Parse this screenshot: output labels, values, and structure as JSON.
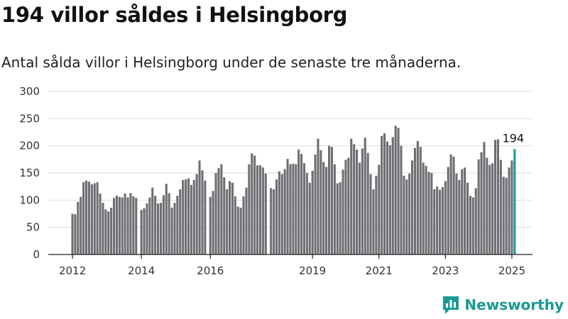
{
  "title": "194 villor såldes i Helsingborg",
  "subtitle": "Antal sålda villor i Helsingborg under de senaste tre månaderna.",
  "brand": {
    "name": "Newsworthy",
    "logo_icon": "newsworthy-logo-icon",
    "color": "#1b9a93"
  },
  "chart_data": {
    "type": "bar",
    "title": "194 villor såldes i Helsingborg",
    "subtitle": "Antal sålda villor i Helsingborg under de senaste tre månaderna.",
    "xlabel": "",
    "ylabel": "",
    "ylim": [
      0,
      300
    ],
    "yticks": [
      "0",
      "50",
      "100",
      "150",
      "200",
      "250",
      "300"
    ],
    "xticks": [
      {
        "label": "2012",
        "index": 0
      },
      {
        "label": "2014",
        "index": 24
      },
      {
        "label": "2016",
        "index": 48
      },
      {
        "label": "2019",
        "index": 84
      },
      {
        "label": "2021",
        "index": 108
      },
      {
        "label": "2023",
        "index": 132
      },
      {
        "label": "2025",
        "index": 156
      }
    ],
    "gaps_after_index": [
      24,
      48,
      69
    ],
    "grid": true,
    "bar_color": "#6e6e73",
    "highlight_color": "#1b9a93",
    "highlight_label": "194",
    "values": [
      75,
      74,
      97,
      106,
      133,
      136,
      134,
      129,
      131,
      133,
      112,
      95,
      83,
      79,
      86,
      104,
      108,
      106,
      105,
      112,
      105,
      113,
      107,
      104,
      82,
      85,
      94,
      105,
      123,
      108,
      94,
      95,
      109,
      130,
      113,
      86,
      95,
      108,
      120,
      137,
      138,
      140,
      128,
      137,
      148,
      173,
      155,
      136,
      106,
      117,
      150,
      159,
      166,
      142,
      120,
      135,
      132,
      107,
      88,
      86,
      107,
      123,
      166,
      186,
      182,
      164,
      164,
      160,
      149,
      122,
      120,
      138,
      153,
      148,
      157,
      176,
      166,
      167,
      166,
      193,
      185,
      168,
      150,
      132,
      154,
      184,
      213,
      192,
      170,
      161,
      200,
      198,
      166,
      131,
      133,
      156,
      174,
      178,
      213,
      203,
      193,
      169,
      195,
      215,
      187,
      148,
      120,
      145,
      165,
      218,
      223,
      208,
      201,
      216,
      237,
      233,
      200,
      145,
      138,
      149,
      173,
      196,
      209,
      198,
      169,
      163,
      152,
      150,
      120,
      125,
      119,
      124,
      135,
      161,
      184,
      180,
      149,
      137,
      157,
      160,
      132,
      108,
      105,
      122,
      175,
      188,
      207,
      178,
      165,
      168,
      211,
      212,
      174,
      143,
      141,
      160,
      173,
      194
    ]
  }
}
